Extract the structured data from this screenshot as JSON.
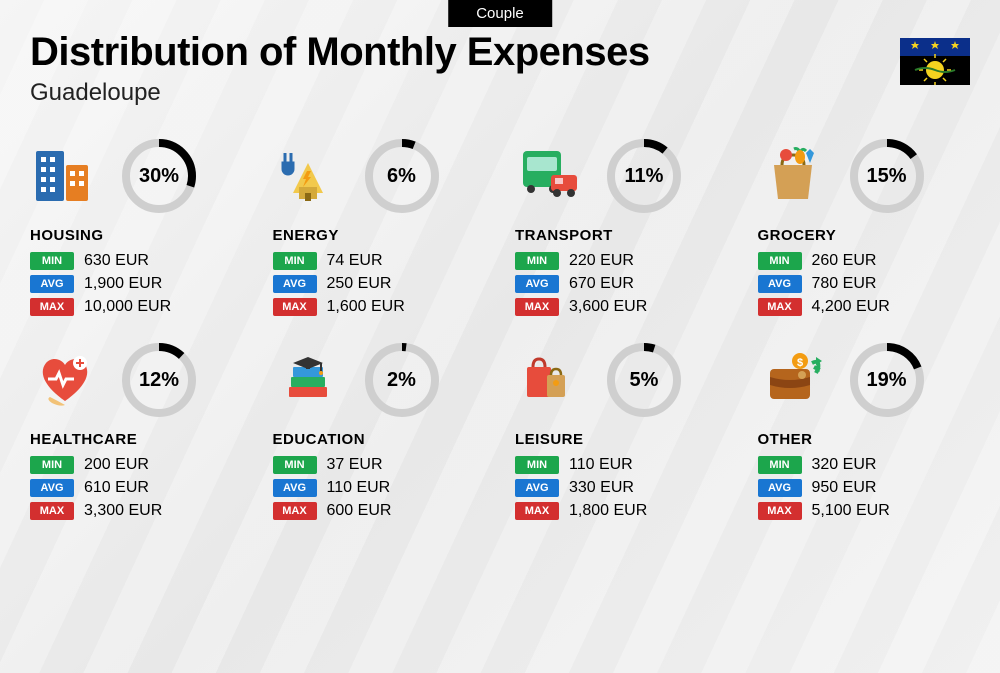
{
  "header": {
    "tag": "Couple",
    "title": "Distribution of Monthly Expenses",
    "subtitle": "Guadeloupe"
  },
  "labels": {
    "min": "MIN",
    "avg": "AVG",
    "max": "MAX"
  },
  "colors": {
    "min": "#1ca64c",
    "avg": "#1976d2",
    "max": "#d32f2f",
    "donut_fg": "#000000",
    "donut_bg": "#cfcfcf"
  },
  "flag": {
    "top_bg": "#0b2f8a",
    "fleur": "#f4d21f",
    "bottom_bg": "#000000",
    "sun": "#f4d21f"
  },
  "categories": [
    {
      "name": "HOUSING",
      "percent": 30,
      "percent_label": "30%",
      "min": "630 EUR",
      "avg": "1,900 EUR",
      "max": "10,000 EUR",
      "icon": "housing"
    },
    {
      "name": "ENERGY",
      "percent": 6,
      "percent_label": "6%",
      "min": "74 EUR",
      "avg": "250 EUR",
      "max": "1,600 EUR",
      "icon": "energy"
    },
    {
      "name": "TRANSPORT",
      "percent": 11,
      "percent_label": "11%",
      "min": "220 EUR",
      "avg": "670 EUR",
      "max": "3,600 EUR",
      "icon": "transport"
    },
    {
      "name": "GROCERY",
      "percent": 15,
      "percent_label": "15%",
      "min": "260 EUR",
      "avg": "780 EUR",
      "max": "4,200 EUR",
      "icon": "grocery"
    },
    {
      "name": "HEALTHCARE",
      "percent": 12,
      "percent_label": "12%",
      "min": "200 EUR",
      "avg": "610 EUR",
      "max": "3,300 EUR",
      "icon": "healthcare"
    },
    {
      "name": "EDUCATION",
      "percent": 2,
      "percent_label": "2%",
      "min": "37 EUR",
      "avg": "110 EUR",
      "max": "600 EUR",
      "icon": "education"
    },
    {
      "name": "LEISURE",
      "percent": 5,
      "percent_label": "5%",
      "min": "110 EUR",
      "avg": "330 EUR",
      "max": "1,800 EUR",
      "icon": "leisure"
    },
    {
      "name": "OTHER",
      "percent": 19,
      "percent_label": "19%",
      "min": "320 EUR",
      "avg": "950 EUR",
      "max": "5,100 EUR",
      "icon": "other"
    }
  ]
}
